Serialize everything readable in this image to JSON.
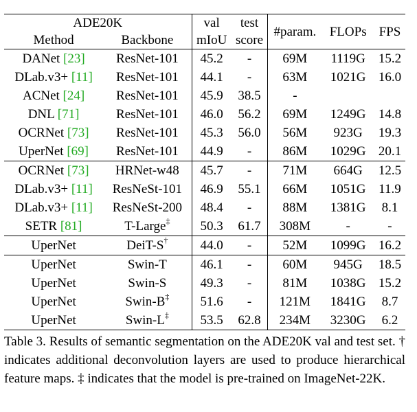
{
  "table": {
    "header": {
      "group_label": "ADE20K",
      "method": "Method",
      "backbone": "Backbone",
      "val_line1": "val",
      "val_line2": "mIoU",
      "test_line1": "test",
      "test_line2": "score",
      "params": "#param.",
      "flops": "FLOPs",
      "fps": "FPS"
    },
    "rows": [
      {
        "method": "DANet",
        "cite": "[23]",
        "backbone": "ResNet-101",
        "mark": "",
        "miou": "45.2",
        "test": "-",
        "params": "69M",
        "flops": "1119G",
        "fps": "15.2",
        "section_start": true
      },
      {
        "method": "DLab.v3+",
        "cite": "[11]",
        "backbone": "ResNet-101",
        "mark": "",
        "miou": "44.1",
        "test": "-",
        "params": "63M",
        "flops": "1021G",
        "fps": "16.0"
      },
      {
        "method": "ACNet",
        "cite": "[24]",
        "backbone": "ResNet-101",
        "mark": "",
        "miou": "45.9",
        "test": "38.5",
        "params": "-",
        "flops": "",
        "fps": ""
      },
      {
        "method": "DNL",
        "cite": "[71]",
        "backbone": "ResNet-101",
        "mark": "",
        "miou": "46.0",
        "test": "56.2",
        "params": "69M",
        "flops": "1249G",
        "fps": "14.8"
      },
      {
        "method": "OCRNet",
        "cite": "[73]",
        "backbone": "ResNet-101",
        "mark": "",
        "miou": "45.3",
        "test": "56.0",
        "params": "56M",
        "flops": "923G",
        "fps": "19.3"
      },
      {
        "method": "UperNet",
        "cite": "[69]",
        "backbone": "ResNet-101",
        "mark": "",
        "miou": "44.9",
        "test": "-",
        "params": "86M",
        "flops": "1029G",
        "fps": "20.1"
      },
      {
        "method": "OCRNet",
        "cite": "[73]",
        "backbone": "HRNet-w48",
        "mark": "",
        "miou": "45.7",
        "test": "-",
        "params": "71M",
        "flops": "664G",
        "fps": "12.5",
        "section_start": true
      },
      {
        "method": "DLab.v3+",
        "cite": "[11]",
        "backbone": "ResNeSt-101",
        "mark": "",
        "miou": "46.9",
        "test": "55.1",
        "params": "66M",
        "flops": "1051G",
        "fps": "11.9"
      },
      {
        "method": "DLab.v3+",
        "cite": "[11]",
        "backbone": "ResNeSt-200",
        "mark": "",
        "miou": "48.4",
        "test": "-",
        "params": "88M",
        "flops": "1381G",
        "fps": "8.1"
      },
      {
        "method": "SETR",
        "cite": "[81]",
        "backbone": "T-Large",
        "mark": "‡",
        "miou": "50.3",
        "test": "61.7",
        "params": "308M",
        "flops": "-",
        "fps": "-"
      },
      {
        "method": "UperNet",
        "cite": "",
        "backbone": "DeiT-S",
        "mark": "†",
        "miou": "44.0",
        "test": "-",
        "params": "52M",
        "flops": "1099G",
        "fps": "16.2",
        "section_start": true
      },
      {
        "method": "UperNet",
        "cite": "",
        "backbone": "Swin-T",
        "mark": "",
        "miou": "46.1",
        "test": "-",
        "params": "60M",
        "flops": "945G",
        "fps": "18.5",
        "section_start": true
      },
      {
        "method": "UperNet",
        "cite": "",
        "backbone": "Swin-S",
        "mark": "",
        "miou": "49.3",
        "test": "-",
        "params": "81M",
        "flops": "1038G",
        "fps": "15.2"
      },
      {
        "method": "UperNet",
        "cite": "",
        "backbone": "Swin-B",
        "mark": "‡",
        "miou": "51.6",
        "test": "-",
        "params": "121M",
        "flops": "1841G",
        "fps": "8.7"
      },
      {
        "method": "UperNet",
        "cite": "",
        "backbone": "Swin-L",
        "mark": "‡",
        "miou": "53.5",
        "test": "62.8",
        "params": "234M",
        "flops": "3230G",
        "fps": "6.2",
        "bold_scores": true
      }
    ]
  },
  "caption": "Table 3. Results of semantic segmentation on the ADE20K val and test set. † indicates additional deconvolution layers are used to produce hierarchical feature maps. ‡ indicates that the model is pre-trained on ImageNet-22K.",
  "colors": {
    "citation": "#22aa22",
    "text": "#000000"
  }
}
